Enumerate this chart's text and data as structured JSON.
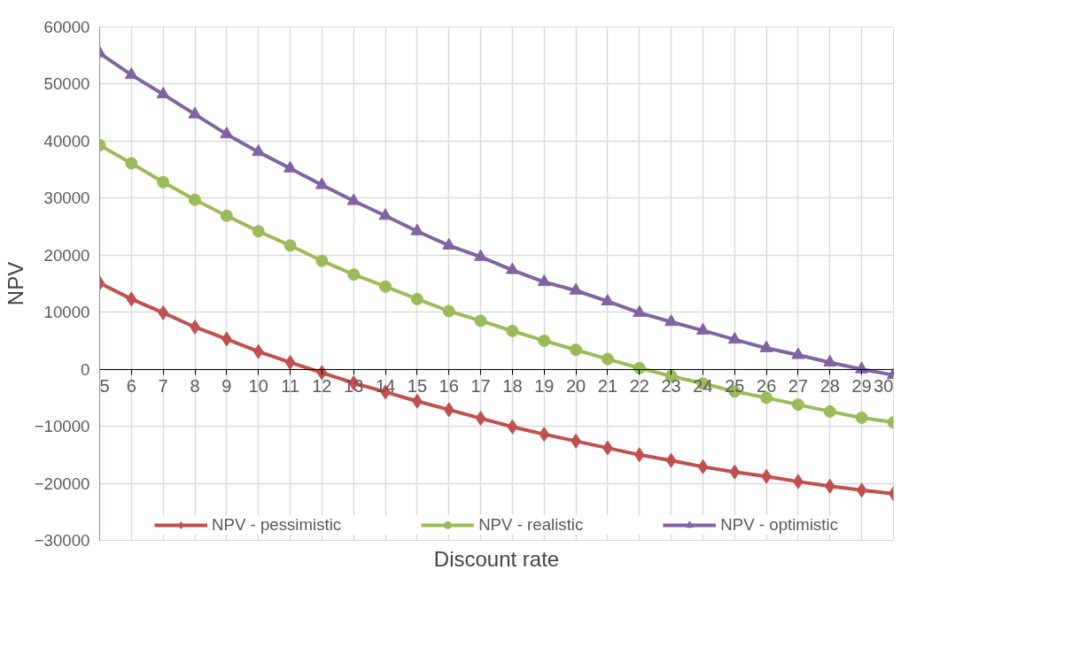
{
  "chart_data": {
    "type": "line",
    "xlabel": "Discount rate",
    "ylabel": "NPV",
    "x": [
      5,
      6,
      7,
      8,
      9,
      10,
      11,
      12,
      13,
      14,
      15,
      16,
      17,
      18,
      19,
      20,
      21,
      22,
      23,
      24,
      25,
      26,
      27,
      28,
      29,
      30
    ],
    "xlim": [
      5,
      30
    ],
    "xticks": [
      5,
      6,
      7,
      8,
      9,
      10,
      11,
      12,
      13,
      14,
      15,
      16,
      17,
      18,
      19,
      20,
      21,
      22,
      23,
      24,
      25,
      26,
      27,
      28,
      29,
      30
    ],
    "ylim": [
      -30000,
      60000
    ],
    "yticks": [
      -30000,
      -20000,
      -10000,
      0,
      10000,
      20000,
      30000,
      40000,
      50000,
      60000
    ],
    "grid": true,
    "legend": "bottom",
    "line_style": "solid",
    "series": [
      {
        "name": "NPV - pessimistic",
        "color": "#c0504d",
        "marker": "diamond",
        "values": [
          15100,
          12300,
          9900,
          7400,
          5300,
          3100,
          1200,
          -600,
          -2400,
          -4000,
          -5600,
          -7100,
          -8600,
          -10100,
          -11400,
          -12600,
          -13800,
          -15000,
          -16000,
          -17100,
          -18000,
          -18800,
          -19700,
          -20500,
          -21200,
          -21800
        ]
      },
      {
        "name": "NPV - realistic",
        "color": "#9bbb59",
        "marker": "circle",
        "values": [
          39300,
          36100,
          32800,
          29700,
          26900,
          24200,
          21700,
          19000,
          16600,
          14500,
          12300,
          10200,
          8500,
          6700,
          5000,
          3400,
          1800,
          200,
          -1200,
          -2500,
          -3900,
          -5000,
          -6200,
          -7400,
          -8500,
          -9300
        ]
      },
      {
        "name": "NPV - optimistic",
        "color": "#8064a2",
        "marker": "triangle",
        "values": [
          55400,
          51600,
          48200,
          44700,
          41200,
          38100,
          35200,
          32300,
          29500,
          26900,
          24200,
          21700,
          19700,
          17400,
          15300,
          13800,
          11900,
          9900,
          8300,
          6800,
          5200,
          3700,
          2500,
          1200,
          0,
          -1000
        ]
      }
    ]
  }
}
